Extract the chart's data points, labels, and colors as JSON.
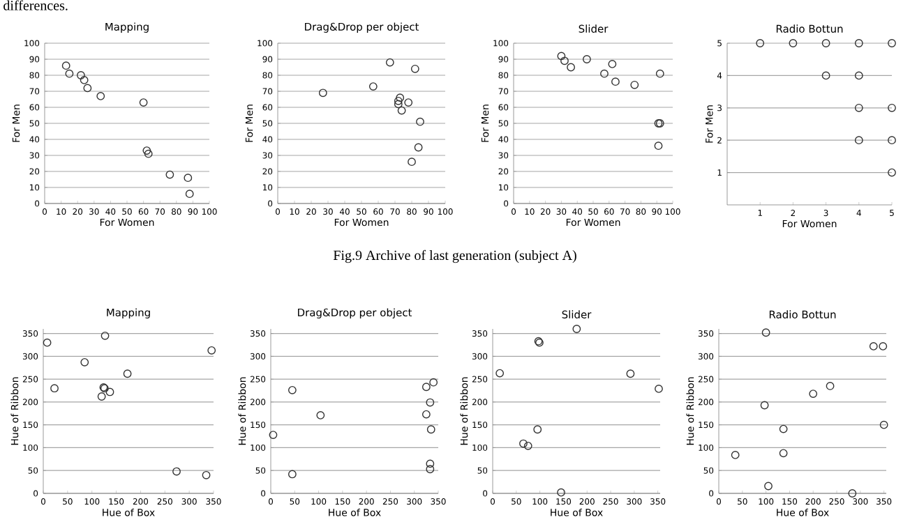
{
  "chart_data": [
    {
      "type": "scatter",
      "title": "Mapping",
      "xlabel": "For Women",
      "ylabel": "For Men",
      "annotations": [
        "differences.",
        "Fig.9 Archive of last generation (subject A)"
      ],
      "x": [
        13,
        15,
        22,
        24,
        26,
        34,
        60,
        62,
        63,
        76,
        87,
        88
      ],
      "values": [
        86,
        81,
        80,
        77,
        72,
        67,
        63,
        33,
        31,
        18,
        16,
        6
      ],
      "color": "#333333",
      "marker": "circle",
      "grid": "y",
      "xlim": [
        0,
        100
      ],
      "ylim": [
        0,
        100
      ],
      "xticks": [
        0,
        10,
        20,
        30,
        40,
        50,
        60,
        70,
        80,
        90,
        100
      ],
      "yticks": [
        0,
        10,
        20,
        30,
        40,
        50,
        60,
        70,
        80,
        90,
        100
      ]
    },
    {
      "type": "scatter",
      "title": "Drag&Drop per object",
      "xlabel": "For Women",
      "ylabel": "For Men",
      "x": [
        27,
        57,
        67,
        82,
        72,
        73,
        72,
        74,
        78,
        85,
        84,
        80
      ],
      "values": [
        69,
        73,
        88,
        84,
        64,
        66,
        62,
        58,
        63,
        51,
        35,
        26
      ],
      "color": "#333333",
      "marker": "circle",
      "grid": "y",
      "xlim": [
        0,
        100
      ],
      "ylim": [
        0,
        100
      ],
      "xticks": [
        0,
        10,
        20,
        30,
        40,
        50,
        60,
        70,
        80,
        90,
        100
      ],
      "yticks": [
        0,
        10,
        20,
        30,
        40,
        50,
        60,
        70,
        80,
        90,
        100
      ]
    },
    {
      "type": "scatter",
      "title": "Slider",
      "xlabel": "For Women",
      "ylabel": "For Men",
      "x": [
        30,
        32,
        36,
        46,
        57,
        62,
        64,
        76,
        92,
        91,
        92,
        91
      ],
      "values": [
        92,
        89,
        85,
        90,
        81,
        87,
        76,
        74,
        81,
        50,
        50,
        36
      ],
      "color": "#333333",
      "marker": "circle",
      "grid": "y",
      "xlim": [
        0,
        100
      ],
      "ylim": [
        0,
        100
      ],
      "xticks": [
        0,
        10,
        20,
        30,
        40,
        50,
        60,
        70,
        80,
        90,
        100
      ],
      "yticks": [
        0,
        10,
        20,
        30,
        40,
        50,
        60,
        70,
        80,
        90,
        100
      ]
    },
    {
      "type": "scatter",
      "title": "Radio Bottun",
      "xlabel": "For Women",
      "ylabel": "For Men",
      "x": [
        1,
        2,
        3,
        4,
        5,
        3,
        4,
        4,
        5,
        4,
        5,
        5
      ],
      "values": [
        5,
        5,
        5,
        5,
        5,
        4,
        4,
        3,
        3,
        2,
        2,
        1
      ],
      "color": "#333333",
      "marker": "circle",
      "grid": "y",
      "xlim": [
        0,
        5
      ],
      "ylim": [
        0,
        5
      ],
      "xticks": [
        1,
        2,
        3,
        4,
        5
      ],
      "yticks": [
        1,
        2,
        3,
        4,
        5
      ]
    },
    {
      "type": "scatter",
      "title": "Mapping",
      "xlabel": "Hue of Box",
      "ylabel": "Hue of Ribbon",
      "x": [
        8,
        23,
        85,
        127,
        120,
        124,
        126,
        137,
        173,
        274,
        335,
        346
      ],
      "values": [
        330,
        230,
        287,
        345,
        212,
        232,
        230,
        222,
        262,
        48,
        40,
        313
      ],
      "color": "#333333",
      "marker": "circle",
      "grid": "y",
      "xlim": [
        0,
        350
      ],
      "ylim": [
        0,
        360
      ],
      "xticks": [
        0,
        50,
        100,
        150,
        200,
        250,
        300,
        350
      ],
      "yticks": [
        0,
        50,
        100,
        150,
        200,
        250,
        300,
        350
      ]
    },
    {
      "type": "scatter",
      "title": "Drag&Drop per object",
      "xlabel": "Hue of Box",
      "ylabel": "Hue of Ribbon",
      "x": [
        5,
        45,
        45,
        104,
        325,
        340,
        333,
        325,
        335,
        333,
        333
      ],
      "values": [
        128,
        226,
        42,
        171,
        233,
        243,
        199,
        173,
        140,
        65,
        53
      ],
      "color": "#333333",
      "marker": "circle",
      "grid": "y",
      "xlim": [
        0,
        350
      ],
      "ylim": [
        0,
        360
      ],
      "xticks": [
        0,
        50,
        100,
        150,
        200,
        250,
        300,
        350
      ],
      "yticks": [
        0,
        50,
        100,
        150,
        200,
        250,
        300,
        350
      ]
    },
    {
      "type": "scatter",
      "title": "Slider",
      "xlabel": "Hue of Box",
      "ylabel": "Hue of Ribbon",
      "x": [
        15,
        97,
        99,
        178,
        292,
        352,
        65,
        75,
        95,
        145
      ],
      "values": [
        263,
        333,
        330,
        360,
        262,
        229,
        109,
        104,
        140,
        2
      ],
      "color": "#333333",
      "marker": "circle",
      "grid": "y",
      "xlim": [
        0,
        355
      ],
      "ylim": [
        0,
        360
      ],
      "xticks": [
        0,
        50,
        100,
        150,
        200,
        250,
        300,
        350
      ],
      "yticks": [
        0,
        50,
        100,
        150,
        200,
        250,
        300,
        350
      ]
    },
    {
      "type": "scatter",
      "title": "Radio Bottun",
      "xlabel": "Hue of Box",
      "ylabel": "Hue of Ribbon",
      "x": [
        35,
        97,
        100,
        105,
        137,
        137,
        200,
        236,
        283,
        328,
        348,
        350
      ],
      "values": [
        84,
        193,
        352,
        16,
        141,
        88,
        218,
        235,
        0,
        322,
        322,
        150
      ],
      "color": "#333333",
      "marker": "circle",
      "grid": "y",
      "xlim": [
        0,
        355
      ],
      "ylim": [
        0,
        360
      ],
      "xticks": [
        0,
        50,
        100,
        150,
        200,
        250,
        300,
        350
      ],
      "yticks": [
        0,
        50,
        100,
        150,
        200,
        250,
        300,
        350
      ]
    }
  ]
}
